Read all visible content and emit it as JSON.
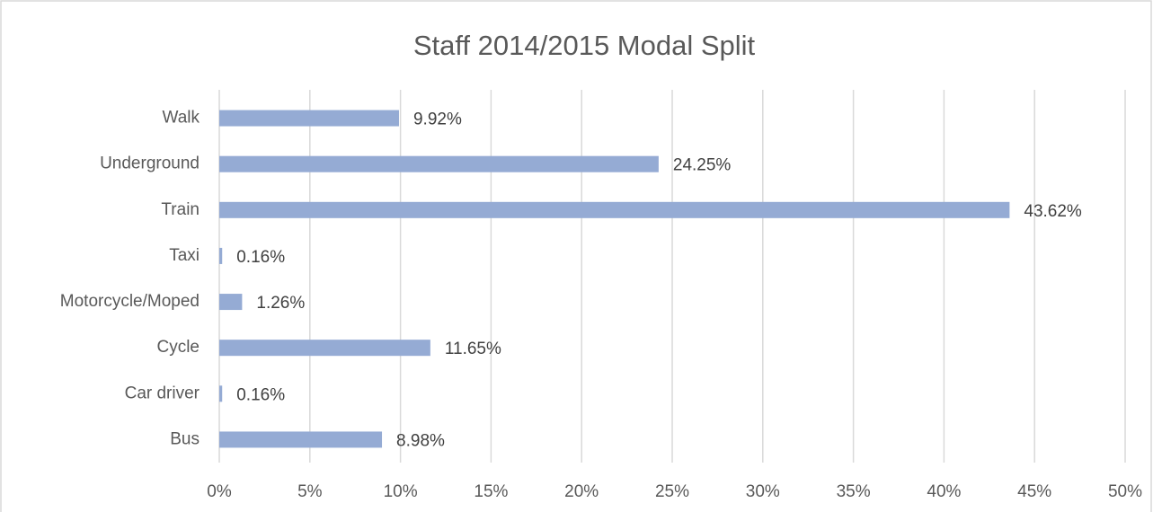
{
  "chart_data": {
    "type": "barh",
    "title": "Staff 2014/2015 Modal Split",
    "categories": [
      "Walk",
      "Underground",
      "Train",
      "Taxi",
      "Motorcycle/Moped",
      "Cycle",
      "Car driver",
      "Bus"
    ],
    "values": [
      9.92,
      24.25,
      43.62,
      0.16,
      1.26,
      11.65,
      0.16,
      8.98
    ],
    "value_labels": [
      "9.92%",
      "24.25%",
      "43.62%",
      "0.16%",
      "1.26%",
      "11.65%",
      "0.16%",
      "8.98%"
    ],
    "color": "#95abd4",
    "xlim": [
      0,
      50
    ],
    "xticks": [
      {
        "value": 0,
        "label": "0%"
      },
      {
        "value": 5,
        "label": "5%"
      },
      {
        "value": 10,
        "label": "10%"
      },
      {
        "value": 15,
        "label": "15%"
      },
      {
        "value": 20,
        "label": "20%"
      },
      {
        "value": 25,
        "label": "25%"
      },
      {
        "value": 30,
        "label": "30%"
      },
      {
        "value": 35,
        "label": "35%"
      },
      {
        "value": 40,
        "label": "40%"
      },
      {
        "value": 45,
        "label": "45%"
      },
      {
        "value": 50,
        "label": "50%"
      }
    ],
    "grid": true
  }
}
